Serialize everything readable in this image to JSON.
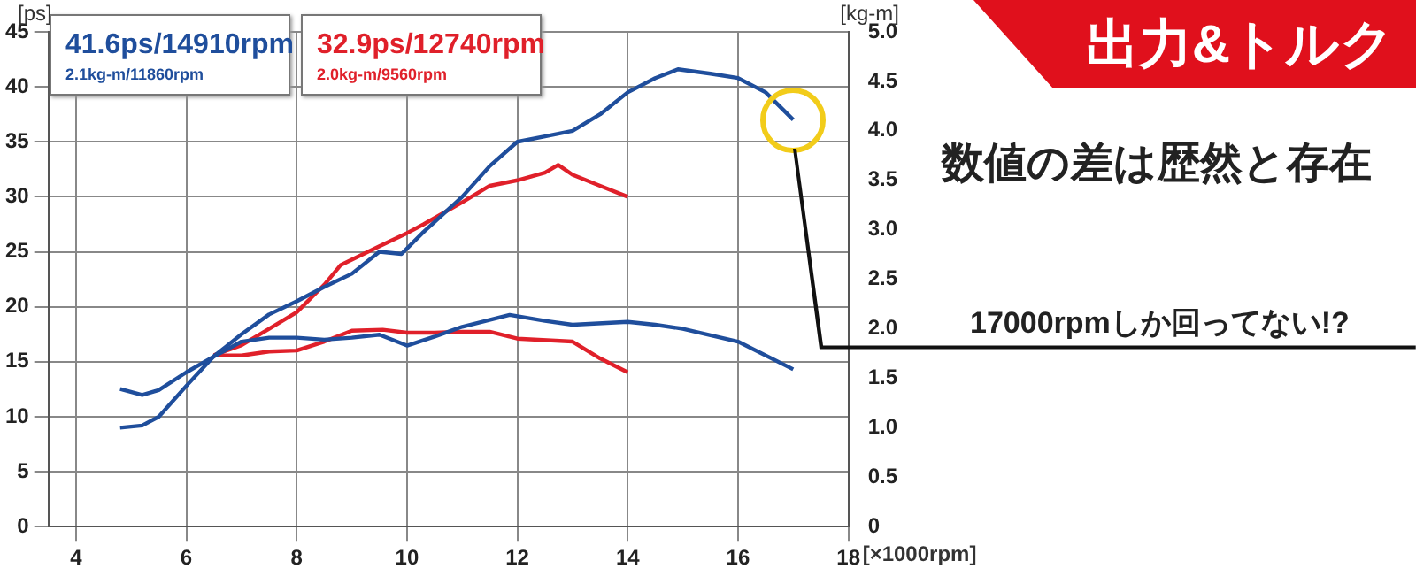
{
  "chart_data": {
    "type": "line",
    "title": "出力&トルク",
    "subtitle": "数値の差は歴然と存在",
    "xlabel": "[×1000rpm]",
    "ylabel": "[ps]",
    "y2label": "[kg-m]",
    "xlim": [
      3.5,
      18
    ],
    "xticks": [
      4,
      6,
      8,
      10,
      12,
      14,
      16,
      18
    ],
    "ylim": [
      0,
      45
    ],
    "yticks": [
      0,
      5,
      10,
      15,
      20,
      25,
      30,
      35,
      40,
      45
    ],
    "y2lim": [
      0,
      5
    ],
    "y2ticks": [
      0,
      {
        "value": 0.5,
        "label": "0.5"
      },
      {
        "value": 1,
        "label": "1.0"
      },
      {
        "value": 1.5,
        "label": "1.5"
      },
      {
        "value": 2,
        "label": "2.0"
      },
      {
        "value": 2.5,
        "label": "2.5"
      },
      {
        "value": 3,
        "label": "3.0"
      },
      {
        "value": 3.5,
        "label": "3.5"
      },
      {
        "value": 4,
        "label": "4.0"
      },
      {
        "value": 4.5,
        "label": "4.5"
      },
      {
        "value": 5,
        "label": "5.0"
      }
    ],
    "grid": true,
    "marker": "none",
    "line_style": "solid",
    "series": [
      {
        "color": "#1f4e9c",
        "x": [
          4.8,
          5.2,
          5.5,
          6,
          6.5,
          7,
          7.5,
          8,
          8.5,
          9,
          9.5,
          9.9,
          10.3,
          11,
          11.5,
          12,
          12.5,
          13,
          13.5,
          14,
          14.5,
          14.91,
          15.5,
          16,
          16.5,
          17
        ],
        "values": [
          9,
          9.2,
          10,
          12.8,
          15.5,
          17.5,
          19.3,
          20.5,
          21.8,
          23,
          25,
          24.8,
          26.8,
          30,
          32.8,
          35,
          35.5,
          36,
          37.5,
          39.5,
          40.8,
          41.6,
          41.2,
          40.8,
          39.5,
          37
        ]
      },
      {
        "color": "#1f4e9c",
        "axis": "y2",
        "x": [
          4.8,
          5.2,
          5.5,
          6,
          6.5,
          7,
          7.5,
          8,
          8.5,
          9,
          9.5,
          10,
          10.5,
          11,
          11.86,
          12.5,
          13,
          14,
          14.5,
          15,
          16,
          17
        ],
        "values": [
          1.39,
          1.33,
          1.38,
          1.56,
          1.72,
          1.87,
          1.91,
          1.91,
          1.89,
          1.91,
          1.94,
          1.83,
          1.92,
          2.02,
          2.14,
          2.08,
          2.04,
          2.07,
          2.04,
          2,
          1.87,
          1.59
        ]
      },
      {
        "color": "#e0202a",
        "x": [
          6.5,
          7,
          7.5,
          8,
          8.5,
          8.8,
          9.5,
          10,
          10.3,
          11,
          11.5,
          12,
          12.5,
          12.74,
          13,
          13.5,
          14
        ],
        "values": [
          15.6,
          16.5,
          18,
          19.5,
          22,
          23.8,
          25.5,
          26.7,
          27.5,
          29.5,
          31,
          31.5,
          32.2,
          32.9,
          32,
          31,
          30
        ]
      },
      {
        "color": "#e0202a",
        "axis": "y2",
        "x": [
          6.5,
          7,
          7.5,
          8,
          8.5,
          9,
          9.56,
          10,
          10.5,
          11,
          11.5,
          12,
          13,
          13.5,
          14
        ],
        "values": [
          1.73,
          1.73,
          1.77,
          1.78,
          1.87,
          1.98,
          1.99,
          1.96,
          1.96,
          1.97,
          1.97,
          1.9,
          1.87,
          1.7,
          1.56
        ]
      }
    ],
    "annotations": [
      "41.6ps/14910rpm",
      "2.1kg-m/11860rpm",
      "32.9ps/12740rpm",
      "2.0kg-m/9560rpm",
      "17000rpmしか回ってない!?"
    ]
  }
}
